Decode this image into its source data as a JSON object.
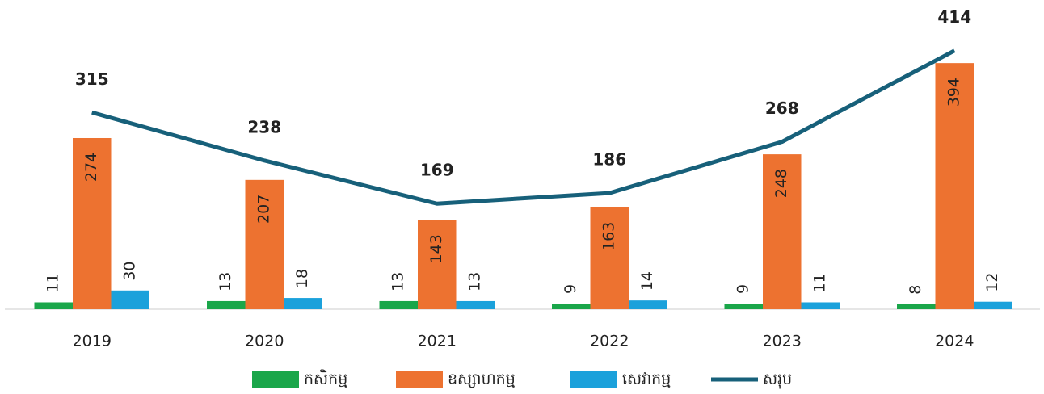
{
  "chart_data": {
    "type": "bar",
    "categories": [
      "2019",
      "2020",
      "2021",
      "2022",
      "2023",
      "2024"
    ],
    "series": [
      {
        "name": "កសិកម្ម",
        "color": "#1aa64a",
        "values": [
          11,
          13,
          13,
          9,
          9,
          8
        ]
      },
      {
        "name": "ឧស្សាហកម្ម",
        "color": "#ed7230",
        "values": [
          274,
          207,
          143,
          163,
          248,
          394
        ]
      },
      {
        "name": "សេវាកម្ម",
        "color": "#1ba1db",
        "values": [
          30,
          18,
          13,
          14,
          11,
          12
        ]
      },
      {
        "name": "សរុប",
        "color": "#17607a",
        "type": "line",
        "values": [
          315,
          238,
          169,
          186,
          268,
          414
        ]
      }
    ],
    "ylim": [
      0,
      495
    ]
  }
}
